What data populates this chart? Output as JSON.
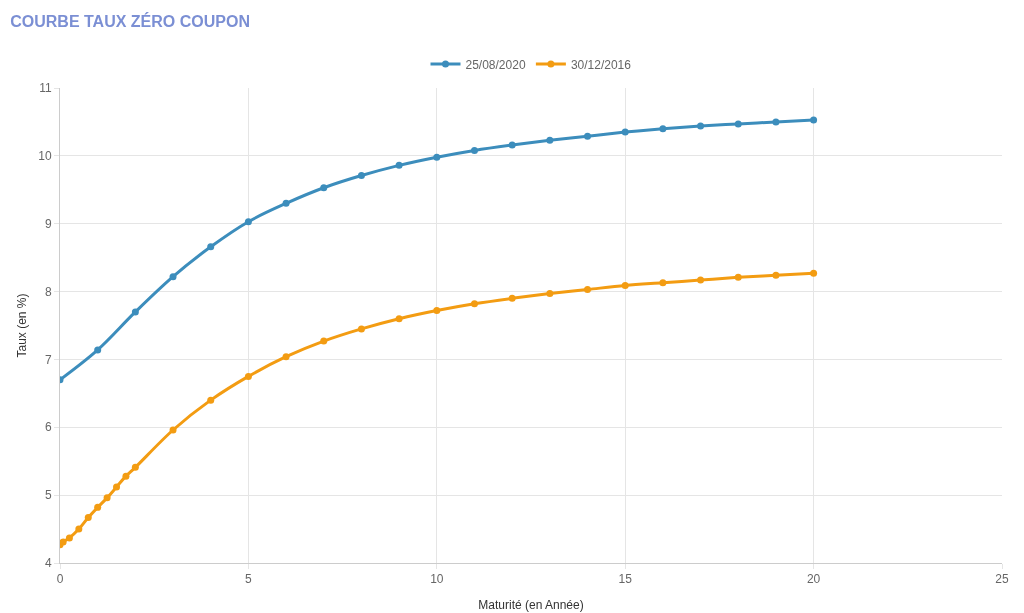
{
  "chart_data": {
    "type": "line",
    "title": "COURBE TAUX ZÉRO COUPON",
    "xlabel": "Maturité (en Année)",
    "ylabel": "Taux (en %)",
    "series": [
      {
        "name": "25/08/2020",
        "color": "#3c8dbc",
        "x": [
          0,
          1,
          2,
          3,
          4,
          5,
          6,
          7,
          8,
          9,
          10,
          11,
          12,
          13,
          14,
          15,
          16,
          17,
          18,
          19,
          20
        ],
        "values": [
          6.7,
          7.14,
          7.7,
          8.22,
          8.66,
          9.03,
          9.3,
          9.53,
          9.71,
          9.86,
          9.98,
          10.08,
          10.16,
          10.23,
          10.29,
          10.35,
          10.4,
          10.44,
          10.47,
          10.5,
          10.53
        ]
      },
      {
        "name": "30/12/2016",
        "color": "#f39c12",
        "x": [
          0,
          0.083,
          0.25,
          0.5,
          0.75,
          1,
          1.25,
          1.5,
          1.75,
          2,
          3,
          4,
          5,
          6,
          7,
          8,
          9,
          10,
          11,
          12,
          13,
          14,
          15,
          16,
          17,
          18,
          19,
          20
        ],
        "values": [
          4.27,
          4.31,
          4.37,
          4.5,
          4.67,
          4.82,
          4.96,
          5.12,
          5.28,
          5.41,
          5.96,
          6.4,
          6.75,
          7.04,
          7.27,
          7.45,
          7.6,
          7.72,
          7.82,
          7.9,
          7.97,
          8.03,
          8.09,
          8.13,
          8.17,
          8.21,
          8.24,
          8.27
        ]
      }
    ],
    "xlim": [
      0,
      25
    ],
    "xticks": [
      0,
      5,
      10,
      15,
      20,
      25
    ],
    "ylim": [
      4,
      11
    ],
    "yticks": [
      4,
      5,
      6,
      7,
      8,
      9,
      10,
      11
    ],
    "grid": true,
    "legend": "top",
    "marker": "circle",
    "line_style": "solid"
  }
}
